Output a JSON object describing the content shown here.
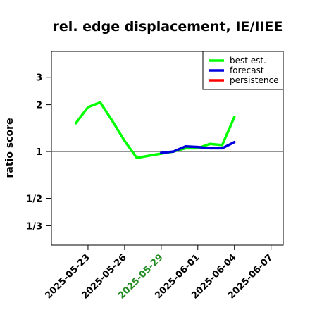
{
  "chart_data": {
    "type": "line",
    "title": "rel. edge displacement, IE/IIEE",
    "xlabel": "",
    "ylabel": "ratio score",
    "scale": "log",
    "y_ticks": [
      {
        "value": 3,
        "label": "3"
      },
      {
        "value": 2,
        "label": "2"
      },
      {
        "value": 1,
        "label": "1"
      },
      {
        "value": 0.5,
        "label": "1/2"
      },
      {
        "value": 0.3333,
        "label": "1/3"
      }
    ],
    "ylim": [
      0.25,
      4.4
    ],
    "xlim": [
      "2025-05-20",
      "2025-06-08"
    ],
    "x_ticks": [
      {
        "date": "2025-05-23",
        "color": "#000000"
      },
      {
        "date": "2025-05-26",
        "color": "#000000"
      },
      {
        "date": "2025-05-29",
        "color": "#228B22"
      },
      {
        "date": "2025-06-01",
        "color": "#000000"
      },
      {
        "date": "2025-06-04",
        "color": "#000000"
      },
      {
        "date": "2025-06-07",
        "color": "#000000"
      }
    ],
    "reference_line": 1,
    "legend": {
      "position": "top-right"
    },
    "series": [
      {
        "name": "best est.",
        "color": "#00ff00",
        "points": [
          {
            "x": "2025-05-22",
            "y": 1.52
          },
          {
            "x": "2025-05-23",
            "y": 1.93
          },
          {
            "x": "2025-05-24",
            "y": 2.07
          },
          {
            "x": "2025-05-25",
            "y": 1.57
          },
          {
            "x": "2025-05-26",
            "y": 1.17
          },
          {
            "x": "2025-05-27",
            "y": 0.91
          },
          {
            "x": "2025-05-28",
            "y": 0.94
          },
          {
            "x": "2025-05-29",
            "y": 0.97
          },
          {
            "x": "2025-05-30",
            "y": 1.0
          },
          {
            "x": "2025-05-31",
            "y": 1.05
          },
          {
            "x": "2025-06-01",
            "y": 1.05
          },
          {
            "x": "2025-06-02",
            "y": 1.12
          },
          {
            "x": "2025-06-03",
            "y": 1.1
          },
          {
            "x": "2025-06-04",
            "y": 1.67
          }
        ]
      },
      {
        "name": "forecast",
        "color": "#0000dd",
        "points": [
          {
            "x": "2025-05-29",
            "y": 0.98
          },
          {
            "x": "2025-05-30",
            "y": 1.0
          },
          {
            "x": "2025-05-31",
            "y": 1.08
          },
          {
            "x": "2025-06-01",
            "y": 1.07
          },
          {
            "x": "2025-06-02",
            "y": 1.05
          },
          {
            "x": "2025-06-03",
            "y": 1.05
          },
          {
            "x": "2025-06-04",
            "y": 1.15
          }
        ]
      },
      {
        "name": "persistence",
        "color": "#ff0000",
        "points": []
      }
    ]
  }
}
